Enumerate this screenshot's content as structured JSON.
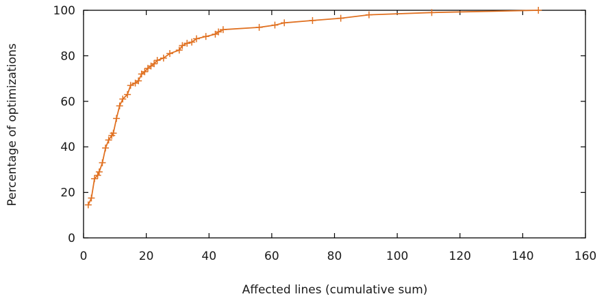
{
  "chart_data": {
    "type": "line",
    "title": "",
    "xlabel": "Affected lines (cumulative sum)",
    "ylabel": "Percentage of optimizations",
    "xlim": [
      0,
      160
    ],
    "ylim": [
      0,
      100
    ],
    "xticks": [
      0,
      20,
      40,
      60,
      80,
      100,
      120,
      140,
      160
    ],
    "yticks": [
      0,
      20,
      40,
      60,
      80,
      100
    ],
    "grid": false,
    "legend": "none",
    "series": [
      {
        "color": "#e07020",
        "marker": "plus",
        "x": [
          1.5,
          2.5,
          3.5,
          4.5,
          5.0,
          6.0,
          7.0,
          8.0,
          9.0,
          9.5,
          10.5,
          11.5,
          12.5,
          14.0,
          15.0,
          16.5,
          17.5,
          18.5,
          19.5,
          20.5,
          21.5,
          22.5,
          23.5,
          25.5,
          27.5,
          30.5,
          31.5,
          33.0,
          34.5,
          36.0,
          39.0,
          42.0,
          43.0,
          44.5,
          56.0,
          61.0,
          64.0,
          73.0,
          82.0,
          91.0,
          111.0,
          145.0
        ],
        "y": [
          14.5,
          17.5,
          26,
          27.5,
          29,
          33,
          39.5,
          43,
          45,
          46,
          52.5,
          58,
          61,
          63,
          67,
          68,
          69,
          72,
          73,
          74.5,
          75.5,
          76.5,
          78,
          79,
          81,
          82.5,
          84.5,
          85.5,
          86,
          87.5,
          88.5,
          89.5,
          90.5,
          91.5,
          92.5,
          93.5,
          94.5,
          95.5,
          96.5,
          98,
          99,
          100
        ]
      }
    ]
  }
}
